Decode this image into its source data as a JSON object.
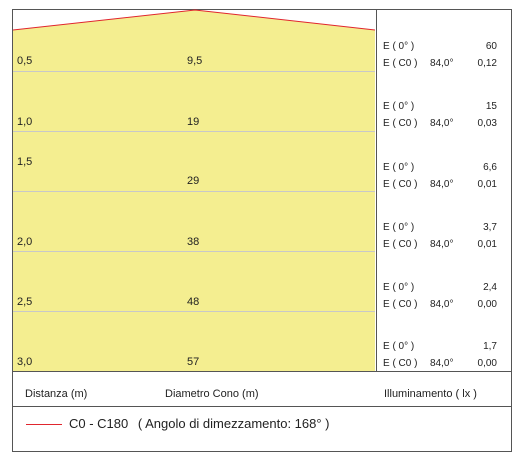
{
  "colors": {
    "cone_fill": "#f4ee90",
    "cone_edge": "#e0262e",
    "grid": "#c8c8c8",
    "frame": "#555555"
  },
  "rows": [
    {
      "distance": "0,5",
      "diameter": "9,5",
      "e0_label": "E ( 0° )",
      "e0_value": "60",
      "ec0_label": "E ( C0 )",
      "angle": "84,0°",
      "ec0_value": "0,12"
    },
    {
      "distance": "1,0",
      "diameter": "19",
      "e0_label": "E ( 0° )",
      "e0_value": "15",
      "ec0_label": "E ( C0 )",
      "angle": "84,0°",
      "ec0_value": "0,03"
    },
    {
      "distance": "1,5",
      "diameter": "29",
      "e0_label": "E ( 0° )",
      "e0_value": "6,6",
      "ec0_label": "E ( C0 )",
      "angle": "84,0°",
      "ec0_value": "0,01"
    },
    {
      "distance": "2,0",
      "diameter": "38",
      "e0_label": "E ( 0° )",
      "e0_value": "3,7",
      "ec0_label": "E ( C0 )",
      "angle": "84,0°",
      "ec0_value": "0,01"
    },
    {
      "distance": "2,5",
      "diameter": "48",
      "e0_label": "E ( 0° )",
      "e0_value": "2,4",
      "ec0_label": "E ( C0 )",
      "angle": "84,0°",
      "ec0_value": "0,00"
    },
    {
      "distance": "3,0",
      "diameter": "57",
      "e0_label": "E ( 0° )",
      "e0_value": "1,7",
      "ec0_label": "E ( C0 )",
      "angle": "84,0°",
      "ec0_value": "0,00"
    }
  ],
  "headers": {
    "distance": "Distanza (m)",
    "diameter": "Diametro Cono (m)",
    "illuminance": "Illuminamento ( lx )"
  },
  "legend": {
    "label": "C0 - C180",
    "detail": "( Angolo di dimezzamento: 168° )"
  }
}
